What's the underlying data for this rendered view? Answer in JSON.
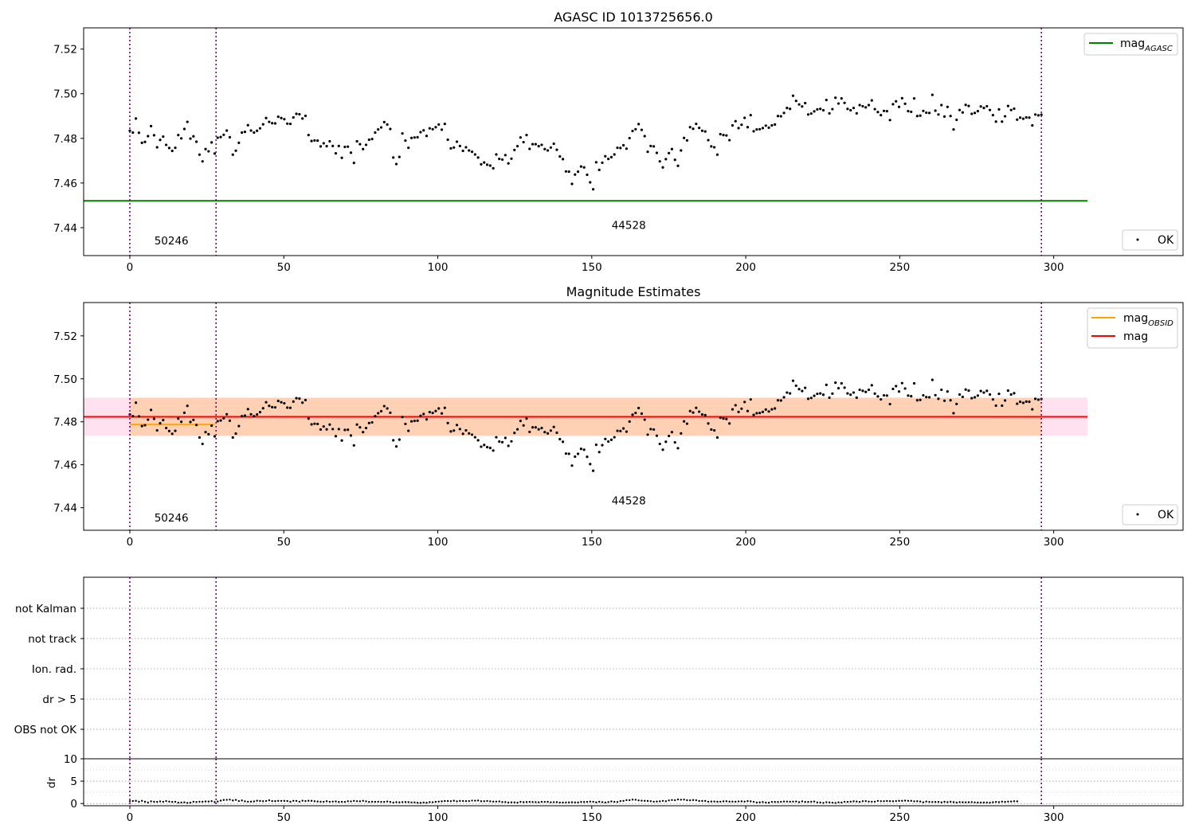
{
  "chart_data": [
    {
      "type": "scatter",
      "title": "AGASC ID 1013725656.0",
      "xlim": [
        -15,
        342
      ],
      "ylim": [
        7.4275,
        7.5295
      ],
      "xticks": [
        "0",
        "50",
        "100",
        "150",
        "200",
        "250",
        "300"
      ],
      "yticks": [
        "7.44",
        "7.46",
        "7.48",
        "7.50",
        "7.52"
      ],
      "obsid_boundaries": [
        0,
        28,
        296
      ],
      "obsid_labels": [
        {
          "text": "50246",
          "x": 13.5,
          "y": 7.4325
        },
        {
          "text": "44528",
          "x": 162,
          "y": 7.4395
        }
      ],
      "lines": [
        {
          "name": "mag_AGASC",
          "color": "#008000",
          "x": [
            -15,
            311
          ],
          "y": [
            7.452,
            7.452
          ]
        }
      ],
      "legend_top": {
        "text": "mag",
        "sub": "AGASC",
        "color": "#008000",
        "placement": "upper right"
      },
      "legend_bottom": {
        "text": "OK",
        "placement": "lower right"
      }
    },
    {
      "type": "scatter",
      "title": "Magnitude Estimates",
      "xlim": [
        -15,
        342
      ],
      "ylim": [
        7.4295,
        7.5355
      ],
      "xticks": [
        "0",
        "50",
        "100",
        "150",
        "200",
        "250",
        "300"
      ],
      "yticks": [
        "7.44",
        "7.46",
        "7.48",
        "7.50",
        "7.52"
      ],
      "obsid_boundaries": [
        0,
        28,
        296
      ],
      "obsid_labels": [
        {
          "text": "50246",
          "x": 13.5,
          "y": 7.4335
        },
        {
          "text": "44528",
          "x": 162,
          "y": 7.4415
        }
      ],
      "mag_band": {
        "x": [
          -15,
          311
        ],
        "y": [
          7.4735,
          7.4912
        ],
        "color": "#ff69b4"
      },
      "obsid_bands": [
        {
          "x": [
            0,
            28
          ],
          "y": [
            7.4735,
            7.4912
          ],
          "color": "#ffa500"
        },
        {
          "x": [
            28,
            296
          ],
          "y": [
            7.4735,
            7.4912
          ],
          "color": "#ffa500"
        }
      ],
      "lines": [
        {
          "name": "mag_OBSID",
          "color": "#ffa500",
          "x": [
            0,
            27.5
          ],
          "y": [
            7.4787,
            7.4787
          ]
        },
        {
          "name": "mag",
          "color": "#ff0000",
          "x": [
            -15,
            311
          ],
          "y": [
            7.4823,
            7.4823
          ]
        }
      ],
      "legend_top": [
        {
          "text": "mag",
          "sub": "OBSID",
          "color": "#ffa500"
        },
        {
          "text": "mag",
          "sub": "",
          "color": "#ff0000"
        }
      ],
      "legend_bottom": {
        "text": "OK",
        "placement": "lower right"
      }
    },
    {
      "type": "scatter",
      "xlim": [
        -15,
        342
      ],
      "flags": [
        "not Kalman",
        "not track",
        "Ion. rad.",
        "dr > 5",
        "OBS not OK"
      ],
      "obsid_boundaries": [
        0,
        28,
        296
      ]
    },
    {
      "type": "scatter",
      "ylabel": "dr",
      "xlim": [
        -15,
        342
      ],
      "ylim": [
        -0.5,
        10
      ],
      "yticks": [
        "0",
        "5",
        "10"
      ],
      "xticks": [
        "0",
        "50",
        "100",
        "150",
        "200",
        "250",
        "300"
      ],
      "obsid_boundaries": [
        0,
        28,
        296
      ]
    }
  ],
  "series": {
    "x_range": [
      0,
      296
    ],
    "mag": [
      7.4834,
      7.4826,
      7.4889,
      7.4825,
      7.478,
      7.4784,
      7.481,
      7.4855,
      7.4814,
      7.476,
      7.4793,
      7.4808,
      7.4771,
      7.4757,
      7.4744,
      7.4758,
      7.4815,
      7.48,
      7.4842,
      7.4874,
      7.4799,
      7.4809,
      7.4785,
      7.4727,
      7.4697,
      7.4752,
      7.4742,
      7.4782,
      7.4732,
      7.4803,
      7.4806,
      7.4816,
      7.4835,
      7.4805,
      7.4727,
      7.4745,
      7.478,
      7.4826,
      7.4829,
      7.4859,
      7.4835,
      7.4826,
      7.4834,
      7.4845,
      7.4863,
      7.4891,
      7.4874,
      7.4868,
      7.4867,
      7.4897,
      7.4891,
      7.4886,
      7.4866,
      7.4865,
      7.4894,
      7.491,
      7.4908,
      7.4889,
      7.4901,
      7.4815,
      7.4788,
      7.4791,
      7.479,
      7.4764,
      7.4778,
      7.4765,
      7.4787,
      7.4766,
      7.4733,
      7.4766,
      7.4713,
      7.4762,
      7.4763,
      7.4736,
      7.469,
      7.4787,
      7.4774,
      7.4752,
      7.4771,
      7.4794,
      7.4797,
      7.4826,
      7.484,
      7.4849,
      7.4873,
      7.4862,
      7.4842,
      7.4714,
      7.4685,
      7.4717,
      7.4822,
      7.479,
      7.4758,
      7.4802,
      7.4804,
      7.4805,
      7.4828,
      7.4836,
      7.4811,
      7.4845,
      7.4841,
      7.485,
      7.4862,
      7.4839,
      7.4865,
      7.4794,
      7.4755,
      7.4759,
      7.4785,
      7.4766,
      7.4744,
      7.476,
      7.4746,
      7.474,
      7.4728,
      7.4714,
      7.4684,
      7.4692,
      7.4682,
      7.4678,
      7.4666,
      7.4728,
      7.4708,
      7.4705,
      7.4725,
      7.4688,
      7.4709,
      7.4748,
      7.4765,
      7.4804,
      7.4783,
      7.4815,
      7.4753,
      7.4774,
      7.4774,
      7.4765,
      7.4771,
      7.4752,
      7.4746,
      7.4759,
      7.4776,
      7.4749,
      7.4719,
      7.4707,
      7.4652,
      7.4651,
      7.4596,
      7.4638,
      7.4651,
      7.4674,
      7.467,
      7.4637,
      7.4603,
      7.4572,
      7.4693,
      7.4659,
      7.4691,
      7.472,
      7.4708,
      7.4716,
      7.4728,
      7.4758,
      7.4757,
      7.4769,
      7.4754,
      7.4801,
      7.4833,
      7.4841,
      7.4864,
      7.4838,
      7.481,
      7.474,
      7.4766,
      7.4764,
      7.4735,
      7.4697,
      7.467,
      7.4707,
      7.4734,
      7.4752,
      7.4704,
      7.4677,
      7.4746,
      7.4802,
      7.4791,
      7.485,
      7.4843,
      7.4865,
      7.4847,
      7.4834,
      7.4831,
      7.4792,
      7.4764,
      7.476,
      7.4727,
      7.4819,
      7.4815,
      7.4813,
      7.4792,
      7.4858,
      7.4877,
      7.4846,
      7.4861,
      7.4892,
      7.485,
      7.4904,
      7.4832,
      7.484,
      7.4841,
      7.4846,
      7.4857,
      7.4848,
      7.4858,
      7.4862,
      7.49,
      7.4899,
      7.4914,
      7.4936,
      7.4932,
      7.4991,
      7.4968,
      7.4952,
      7.4943,
      7.4958,
      7.4907,
      7.4911,
      7.4921,
      7.493,
      7.4932,
      7.4926,
      7.4972,
      7.4912,
      7.4931,
      7.4982,
      7.4956,
      7.4979,
      7.4959,
      7.4932,
      7.4926,
      7.4936,
      7.4912,
      7.4949,
      7.4944,
      7.4939,
      7.4949,
      7.497,
      7.4931,
      7.4918,
      7.4904,
      7.4923,
      7.4922,
      7.4882,
      7.4953,
      7.4966,
      7.4941,
      7.498,
      7.4955,
      7.4922,
      7.4919,
      7.4979,
      7.49,
      7.4902,
      7.4923,
      7.4915,
      7.4914,
      7.4995,
      7.4924,
      7.4907,
      7.4949,
      7.4898,
      7.4941,
      7.49,
      7.484,
      7.4883,
      7.4927,
      7.4916,
      7.495,
      7.4945,
      7.491,
      7.4914,
      7.4922,
      7.4943,
      7.4936,
      7.4944,
      7.4927,
      7.4904,
      7.4875,
      7.493,
      7.4875,
      7.4899,
      7.4945,
      7.4927,
      7.4933,
      7.4884,
      7.4893,
      7.4888,
      7.4894,
      7.4893,
      7.4858,
      7.4907,
      7.4903,
      7.4906
    ],
    "dr": [
      0.51,
      0.55,
      0.59,
      0.4,
      0.6,
      0.39,
      0.23,
      0.49,
      0.39,
      0.36,
      0.47,
      0.38,
      0.54,
      0.43,
      0.35,
      0.38,
      0.19,
      0.22,
      0.26,
      0.14,
      0.19,
      0.4,
      0.34,
      0.41,
      0.39,
      0.46,
      0.44,
      0.53,
      0.34,
      0.45,
      0.64,
      0.79,
      0.83,
      0.87,
      0.68,
      0.81,
      0.54,
      0.68,
      0.49,
      0.41,
      0.42,
      0.46,
      0.62,
      0.57,
      0.51,
      0.56,
      0.71,
      0.54,
      0.53,
      0.58,
      0.58,
      0.6,
      0.55,
      0.39,
      0.6,
      0.58,
      0.41,
      0.62,
      0.54,
      0.61,
      0.59,
      0.51,
      0.44,
      0.4,
      0.38,
      0.51,
      0.38,
      0.43,
      0.46,
      0.35,
      0.37,
      0.36,
      0.51,
      0.47,
      0.58,
      0.52,
      0.49,
      0.6,
      0.49,
      0.35,
      0.39,
      0.37,
      0.41,
      0.36,
      0.36,
      0.45,
      0.35,
      0.22,
      0.3,
      0.26,
      0.32,
      0.33,
      0.3,
      0.25,
      0.25,
      0.17,
      0.15,
      0.22,
      0.17,
      0.3,
      0.29,
      0.37,
      0.43,
      0.48,
      0.55,
      0.55,
      0.52,
      0.61,
      0.49,
      0.57,
      0.55,
      0.53,
      0.54,
      0.65,
      0.63,
      0.67,
      0.5,
      0.51,
      0.56,
      0.49,
      0.42,
      0.43,
      0.46,
      0.33,
      0.33,
      0.21,
      0.26,
      0.25,
      0.2,
      0.38,
      0.3,
      0.33,
      0.36,
      0.34,
      0.31,
      0.27,
      0.37,
      0.36,
      0.37,
      0.27,
      0.29,
      0.31,
      0.23,
      0.22,
      0.23,
      0.25,
      0.28,
      0.25,
      0.24,
      0.36,
      0.33,
      0.36,
      0.43,
      0.38,
      0.26,
      0.39,
      0.31,
      0.22,
      0.32,
      0.46,
      0.37,
      0.34,
      0.54,
      0.58,
      0.75,
      0.75,
      0.86,
      0.84,
      0.69,
      0.63,
      0.6,
      0.57,
      0.52,
      0.41,
      0.44,
      0.49,
      0.58,
      0.51,
      0.69,
      0.78,
      0.74,
      0.9,
      0.85,
      0.87,
      0.74,
      0.72,
      0.77,
      0.74,
      0.57,
      0.57,
      0.57,
      0.41,
      0.44,
      0.45,
      0.39,
      0.41,
      0.48,
      0.5,
      0.42,
      0.42,
      0.4,
      0.47,
      0.48,
      0.43,
      0.53,
      0.48,
      0.38,
      0.23,
      0.26,
      0.33,
      0.22,
      0.19,
      0.36,
      0.35,
      0.33,
      0.38,
      0.44,
      0.43,
      0.39,
      0.42,
      0.45,
      0.3,
      0.48,
      0.35,
      0.35,
      0.39,
      0.45,
      0.25,
      0.23,
      0.13,
      0.29,
      0.24,
      0.19,
      0.13,
      0.26,
      0.22,
      0.38,
      0.35,
      0.41,
      0.48,
      0.44,
      0.35,
      0.51,
      0.53,
      0.43,
      0.41,
      0.41,
      0.58,
      0.52,
      0.52,
      0.55,
      0.53,
      0.5,
      0.54,
      0.59,
      0.6,
      0.64,
      0.6,
      0.59,
      0.49,
      0.5,
      0.44,
      0.27,
      0.44,
      0.36,
      0.34,
      0.35,
      0.35,
      0.26,
      0.39,
      0.31,
      0.39,
      0.3,
      0.22,
      0.31,
      0.28,
      0.27,
      0.28,
      0.31,
      0.25,
      0.21,
      0.21,
      0.21,
      0.21,
      0.19,
      0.28,
      0.35,
      0.3,
      0.42,
      0.35,
      0.43,
      0.44,
      0.51,
      0.48
    ]
  }
}
